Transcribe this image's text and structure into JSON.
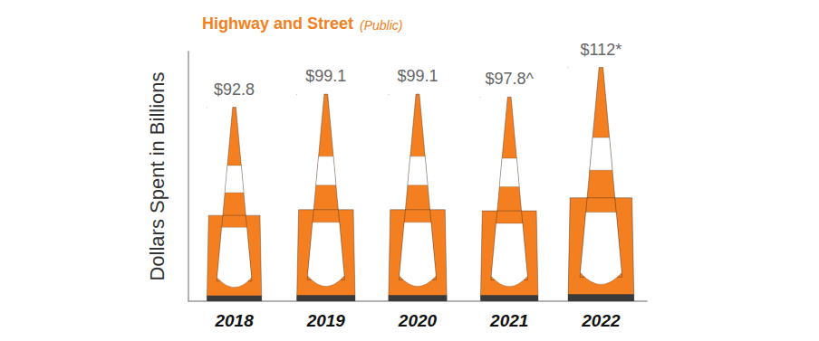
{
  "chart_data": {
    "type": "bar",
    "title": "Highway and Street",
    "subtitle": "(Public)",
    "y_label": "Dollars Spent in Billions",
    "categories": [
      "2018",
      "2019",
      "2020",
      "2021",
      "2022"
    ],
    "values": [
      92.8,
      99.1,
      99.1,
      97.8,
      112
    ],
    "value_labels": [
      "$92.8",
      "$99.1",
      "$99.1",
      "$97.8^",
      "$112*"
    ],
    "color": "#f47f20",
    "ylim": [
      0,
      120
    ],
    "tick_labels": "x",
    "data_labels": true,
    "grid": false
  }
}
